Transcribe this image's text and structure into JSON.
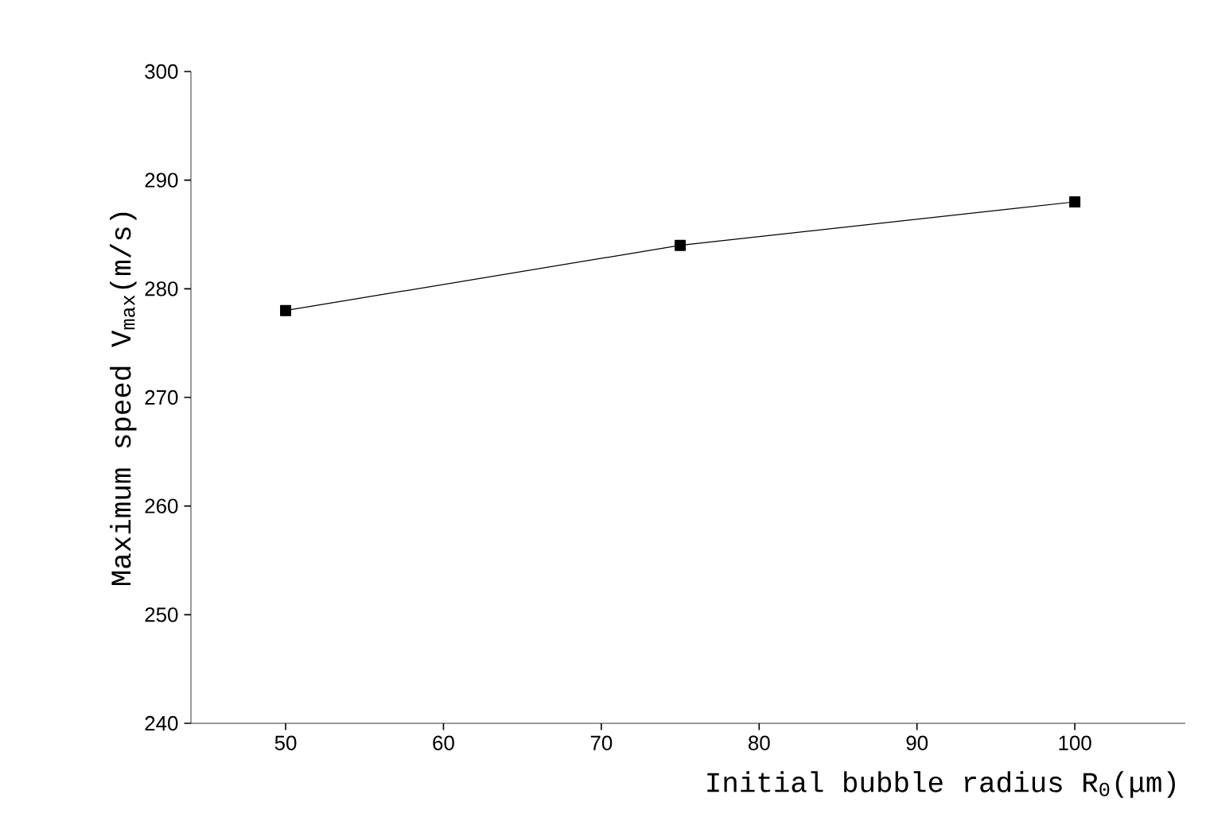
{
  "chart_data": {
    "type": "line",
    "xlabel": "Initial bubble radius  R$_{0}$(μm)",
    "ylabel": "Maximum speed  V$_{max}$(m/s)",
    "x": [
      50,
      75,
      100
    ],
    "series": [
      {
        "color": "#000000",
        "values": [
          278,
          284,
          288
        ]
      }
    ],
    "xlim": [
      44,
      107
    ],
    "ylim": [
      240,
      300
    ],
    "xticks": [
      50,
      60,
      70,
      80,
      90,
      100
    ],
    "yticks": [
      240,
      250,
      260,
      270,
      280,
      290,
      300
    ],
    "marker": "square",
    "line_style": "solid",
    "grid": false
  }
}
